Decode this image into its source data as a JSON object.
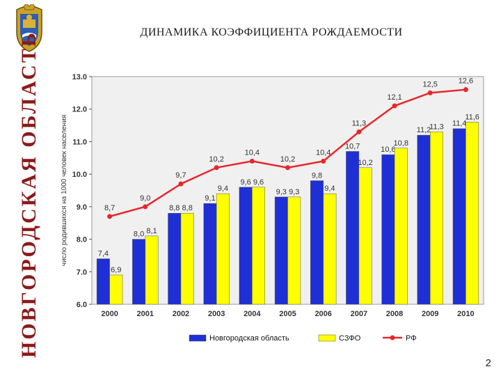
{
  "sidebar": {
    "vertical_title": "НОВГОРОДСКАЯ ОБЛАСТЬ",
    "emblem_icon": "coat-of-arms-icon"
  },
  "slide": {
    "title": "ДИНАМИКА КОЭФФИЦИЕНТА РОЖДАЕМОСТИ",
    "page_number": "2"
  },
  "colors": {
    "series_novgorod": "#1f2fd6",
    "series_szfo": "#ffff00",
    "series_rf": "#e8262b",
    "plot_bg": "#f0f0f0",
    "sidebar_text": "#8b1a1a"
  },
  "chart_data": {
    "type": "bar",
    "title": "ДИНАМИКА КОЭФФИЦИЕНТА РОЖДАЕМОСТИ",
    "ylabel": "число родившихся на 1000 человек населения",
    "xlabel": "",
    "ylim": [
      6.0,
      13.0
    ],
    "yticks": [
      "6.0",
      "7.0",
      "8.0",
      "9.0",
      "10.0",
      "11.0",
      "12.0",
      "13.0"
    ],
    "categories": [
      "2000",
      "2001",
      "2002",
      "2003",
      "2004",
      "2005",
      "2006",
      "2007",
      "2008",
      "2009",
      "2010"
    ],
    "series": [
      {
        "name": "Новгородская область",
        "kind": "bar",
        "values": [
          7.4,
          8.0,
          8.8,
          9.1,
          9.6,
          9.3,
          9.8,
          10.7,
          10.6,
          11.2,
          11.4
        ],
        "labels": [
          "7,4",
          "8,0",
          "8,8",
          "9,1",
          "9,6",
          "9,3",
          "9,8",
          "10,7",
          "10,6",
          "11,2",
          "11,4"
        ]
      },
      {
        "name": "СЗФО",
        "kind": "bar",
        "values": [
          6.9,
          8.1,
          8.8,
          9.4,
          9.6,
          9.3,
          9.4,
          10.2,
          10.8,
          11.3,
          11.6
        ],
        "labels": [
          "6,9",
          "8,1",
          "8,8",
          "9,4",
          "9,6",
          "9,3",
          "9,4",
          "10,2",
          "10,8",
          "11,3",
          "11,6"
        ]
      },
      {
        "name": "РФ",
        "kind": "line",
        "values": [
          8.7,
          9.0,
          9.7,
          10.2,
          10.4,
          10.2,
          10.4,
          11.3,
          12.1,
          12.5,
          12.6
        ],
        "labels": [
          "8,7",
          "9,0",
          "9,7",
          "10,2",
          "10,4",
          "10,2",
          "10,4",
          "11,3",
          "12,1",
          "12,5",
          "12,6"
        ]
      }
    ],
    "legend_position": "bottom",
    "grid": false
  }
}
